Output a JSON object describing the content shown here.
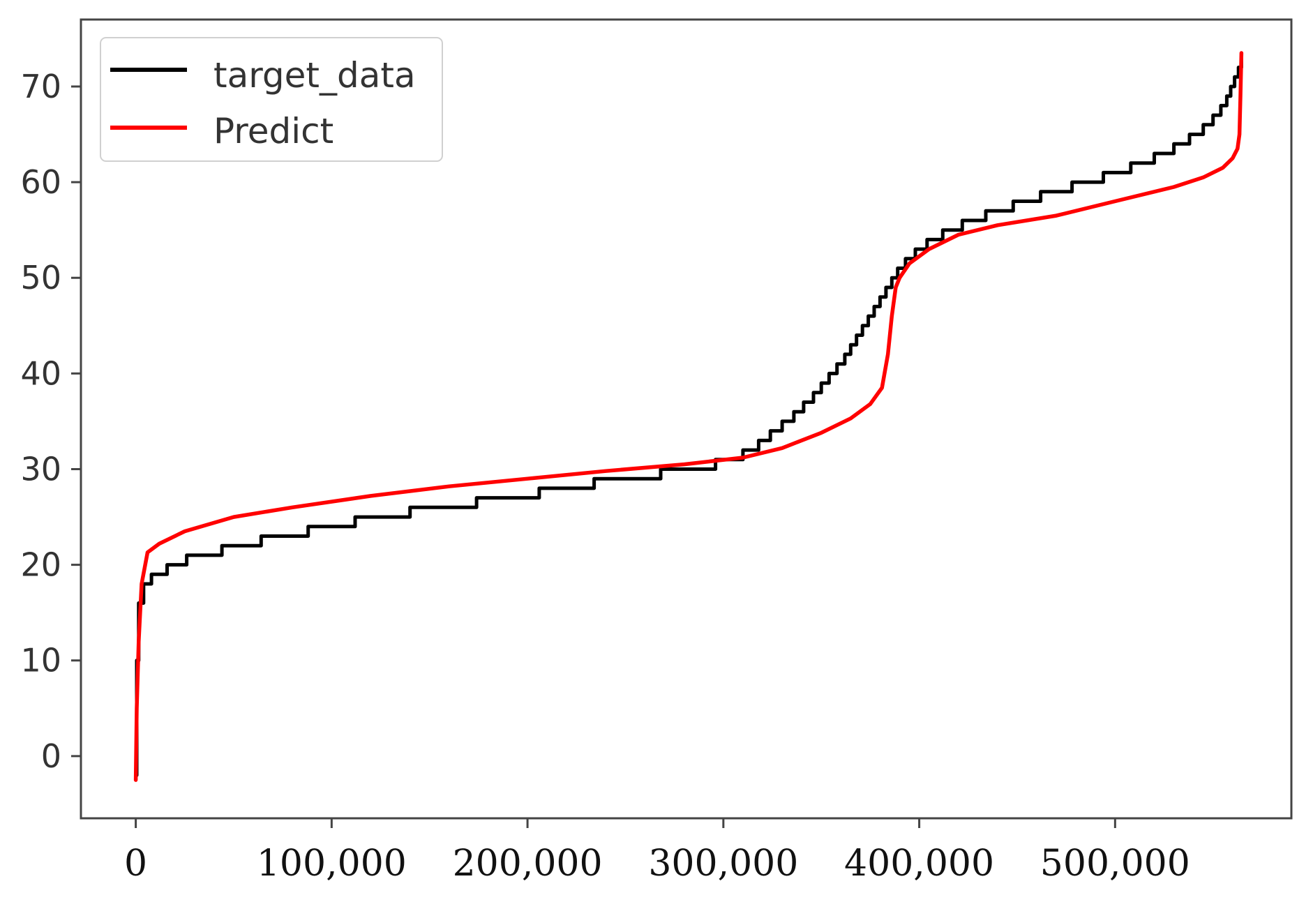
{
  "chart_data": {
    "type": "line",
    "title": "",
    "xlabel": "",
    "ylabel": "",
    "xlim": [
      -28000,
      590000
    ],
    "ylim": [
      -6.5,
      77
    ],
    "xticks": [
      0,
      100000,
      200000,
      300000,
      400000,
      500000
    ],
    "xtick_labels": [
      "0",
      "100,000",
      "200,000",
      "300,000",
      "400,000",
      "500,000"
    ],
    "yticks": [
      0,
      10,
      20,
      30,
      40,
      50,
      60,
      70
    ],
    "ytick_labels": [
      "0",
      "10",
      "20",
      "30",
      "40",
      "50",
      "60",
      "70"
    ],
    "grid": false,
    "legend_position": "top-left",
    "series": [
      {
        "name": "target_data",
        "color": "#000000",
        "step": true,
        "x": [
          0,
          500,
          1500,
          4000,
          8000,
          16000,
          26000,
          44000,
          64000,
          88000,
          112000,
          140000,
          174000,
          206000,
          234000,
          268000,
          296000,
          310000,
          318000,
          324000,
          330000,
          336000,
          341000,
          346000,
          350000,
          354000,
          358000,
          362000,
          365000,
          368000,
          371000,
          374000,
          377000,
          380000,
          383000,
          386000,
          389000,
          393000,
          398000,
          404000,
          412000,
          422000,
          434000,
          448000,
          462000,
          478000,
          494000,
          508000,
          520000,
          530000,
          538000,
          545000,
          550000,
          554000,
          557000,
          559000,
          561000,
          563000,
          564500
        ],
        "y": [
          -2,
          10,
          16,
          18,
          19,
          20,
          21,
          22,
          23,
          24,
          25,
          26,
          27,
          28,
          29,
          30,
          31,
          32,
          33,
          34,
          35,
          36,
          37,
          38,
          39,
          40,
          41,
          42,
          43,
          44,
          45,
          46,
          47,
          48,
          49,
          50,
          51,
          52,
          53,
          54,
          55,
          56,
          57,
          58,
          59,
          60,
          61,
          62,
          63,
          64,
          65,
          66,
          67,
          68,
          69,
          70,
          71,
          72,
          73
        ]
      },
      {
        "name": "Predict",
        "color": "#ff0000",
        "step": false,
        "x": [
          0,
          500,
          1500,
          3000,
          6000,
          12000,
          25000,
          50000,
          80000,
          120000,
          160000,
          200000,
          240000,
          280000,
          310000,
          330000,
          350000,
          365000,
          375000,
          381000,
          384000,
          386000,
          388000,
          390000,
          395000,
          405000,
          420000,
          440000,
          470000,
          500000,
          530000,
          545000,
          555000,
          560000,
          562500,
          563500,
          564000,
          564500
        ],
        "y": [
          -2.5,
          5,
          12,
          18,
          21.3,
          22.2,
          23.5,
          25,
          26,
          27.2,
          28.2,
          29,
          29.8,
          30.5,
          31.2,
          32.2,
          33.8,
          35.3,
          36.8,
          38.5,
          42,
          46,
          49,
          50,
          51.5,
          53,
          54.5,
          55.5,
          56.5,
          58,
          59.5,
          60.5,
          61.5,
          62.5,
          63.5,
          65,
          69,
          73.5
        ]
      }
    ]
  }
}
